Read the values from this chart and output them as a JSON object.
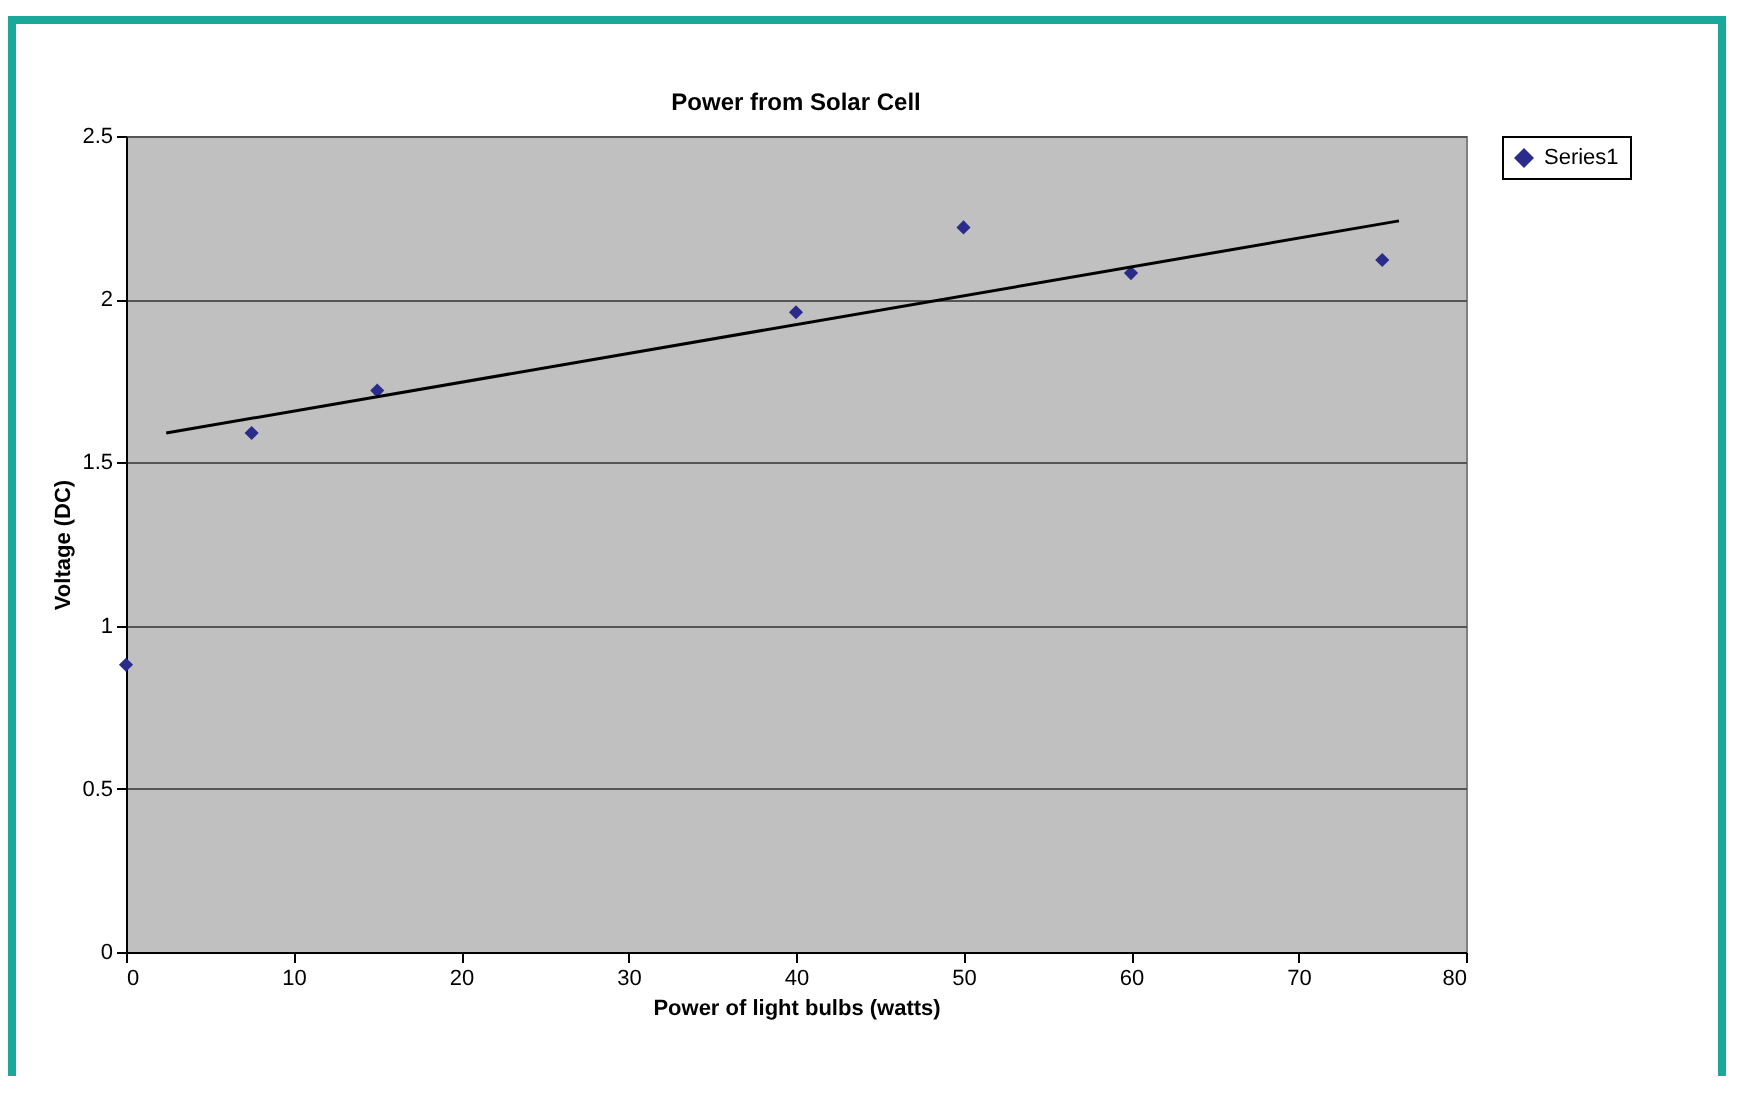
{
  "chart_data": {
    "type": "scatter",
    "title": "Power from Solar Cell",
    "xlabel": "Power of light bulbs (watts)",
    "ylabel": "Voltage (DC)",
    "x": [
      0,
      7.5,
      15,
      40,
      50,
      60,
      75
    ],
    "series": [
      {
        "name": "Series1",
        "color": "#2b2b8c",
        "values": [
          0.88,
          1.59,
          1.72,
          1.96,
          2.22,
          2.08,
          2.12
        ]
      },
      {
        "type": "line",
        "marker": "none",
        "color": "#000000",
        "x": [
          2.4,
          76
        ],
        "values": [
          1.59,
          2.24
        ]
      }
    ],
    "marker": "diamond",
    "grid": "y",
    "legend": "right",
    "xlim": [
      0,
      80
    ],
    "xticks": [
      0,
      10,
      20,
      30,
      40,
      50,
      60,
      70,
      80
    ],
    "ylim": [
      0,
      2.5
    ],
    "yticks": [
      0,
      0.5,
      1,
      1.5,
      2,
      2.5
    ]
  }
}
